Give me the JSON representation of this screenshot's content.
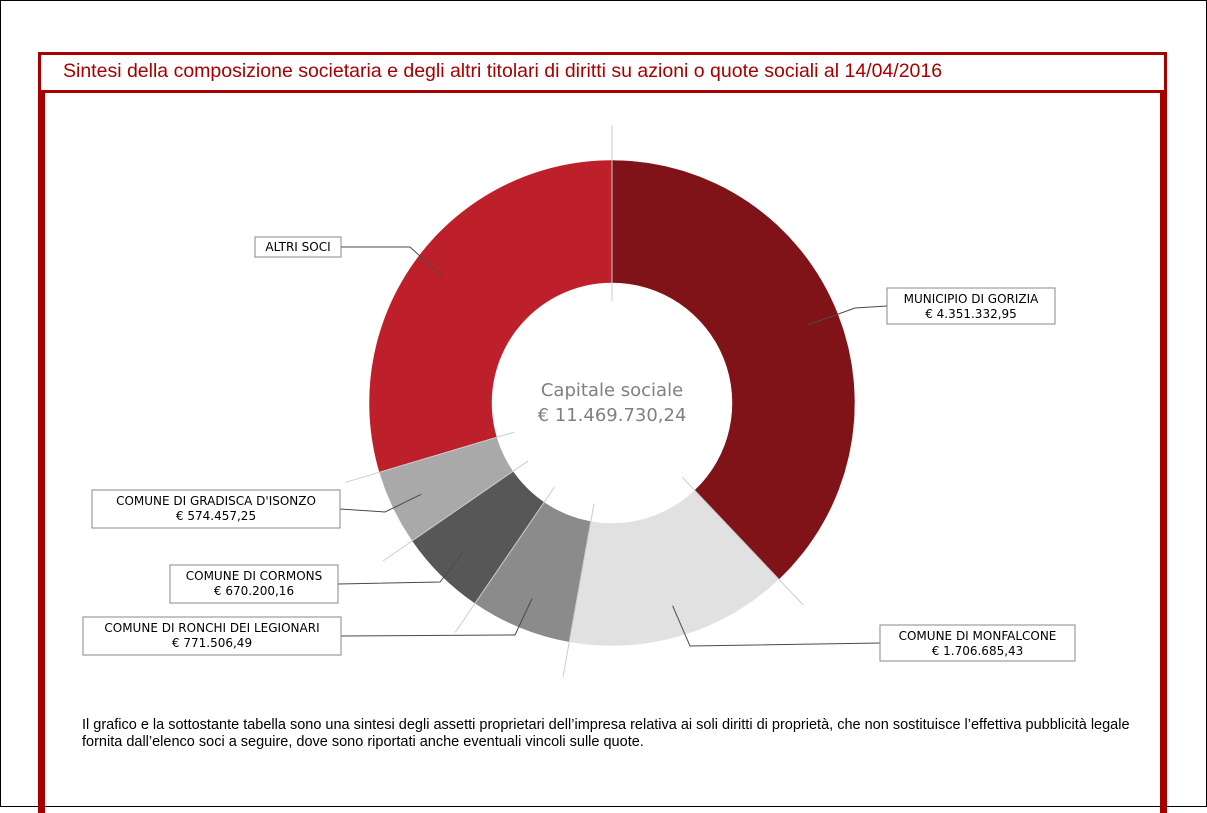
{
  "document": {
    "section_title": "Sintesi della composizione societaria e degli altri titolari di diritti su azioni o quote sociali al 14/04/2016",
    "note": "Il grafico e la sottostante tabella sono una sintesi degli assetti proprietari dell’impresa relativa ai soli diritti di proprietà, che non sostituisce l’effettiva pubblicità legale fornita dall’elenco soci a seguire, dove sono riportati anche eventuali vincoli sulle quote."
  },
  "chart_data": {
    "type": "pie",
    "center_title": "Capitale sociale",
    "center_value": "€ 11.469.730,24",
    "total": 11469730.24,
    "colors": {
      "accent": "#a80000"
    },
    "slices": [
      {
        "name": "MUNICIPIO DI GORIZIA",
        "value": 4351332.95,
        "label_value": "€ 4.351.332,95",
        "color": "#7f1318"
      },
      {
        "name": "COMUNE DI MONFALCONE",
        "value": 1706685.43,
        "label_value": "€ 1.706.685,43",
        "color": "#e1e1e1"
      },
      {
        "name": "COMUNE DI RONCHI DEI LEGIONARI",
        "value": 771506.49,
        "label_value": "€ 771.506,49",
        "color": "#8b8b8b"
      },
      {
        "name": "COMUNE DI CORMONS",
        "value": 670200.16,
        "label_value": "€ 670.200,16",
        "color": "#575757"
      },
      {
        "name": "COMUNE DI GRADISCA D'ISONZO",
        "value": 574457.25,
        "label_value": "€ 574.457,25",
        "color": "#a9a9a9"
      },
      {
        "name": "ALTRI SOCI",
        "value": 3395547.96,
        "label_value": "",
        "color": "#bd202b"
      }
    ]
  }
}
